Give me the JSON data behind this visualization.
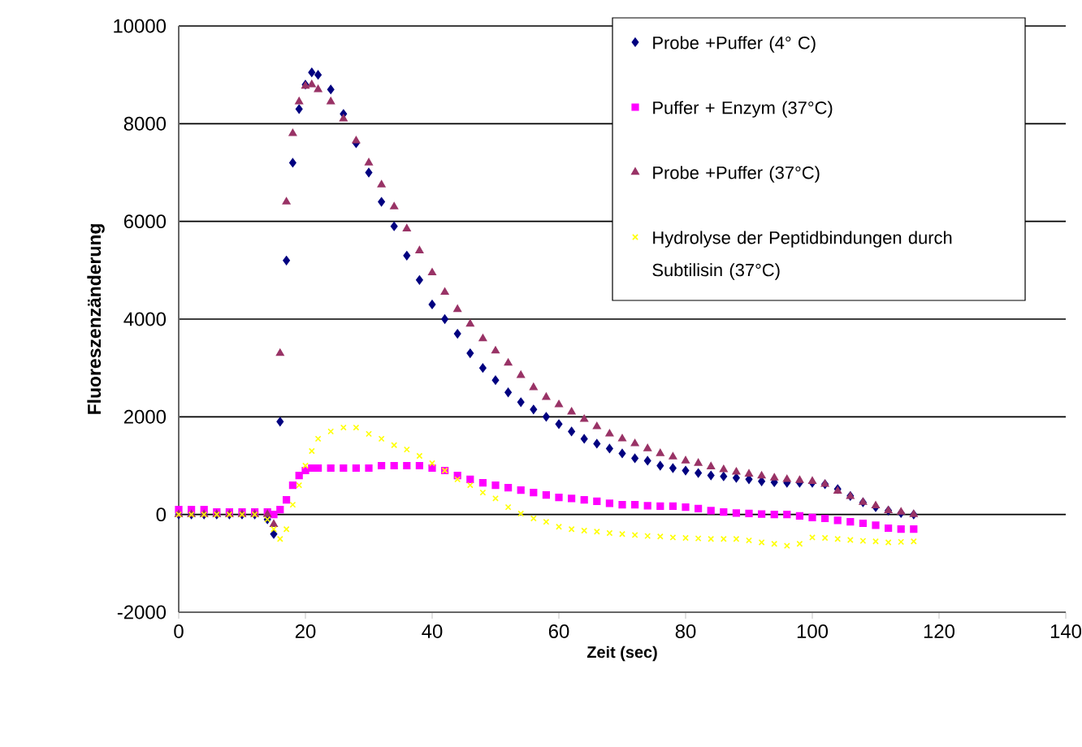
{
  "chart_data": {
    "type": "scatter",
    "xlabel": "Zeit (sec)",
    "ylabel": "Fluoreszenzänderung",
    "x": [
      0,
      2,
      4,
      6,
      8,
      10,
      12,
      14,
      15,
      16,
      17,
      18,
      19,
      20,
      21,
      22,
      24,
      26,
      28,
      30,
      32,
      34,
      36,
      38,
      40,
      42,
      44,
      46,
      48,
      50,
      52,
      54,
      56,
      58,
      60,
      62,
      64,
      66,
      68,
      70,
      72,
      74,
      76,
      78,
      80,
      82,
      84,
      86,
      88,
      90,
      92,
      94,
      96,
      98,
      100,
      102,
      104,
      106,
      108,
      110,
      112,
      114,
      116
    ],
    "series": [
      {
        "name": "Probe +Puffer (4° C)",
        "color": "#000080",
        "marker": "diamond",
        "values": [
          0,
          0,
          0,
          0,
          0,
          0,
          0,
          -100,
          -400,
          1900,
          5200,
          7200,
          8300,
          8800,
          9050,
          9000,
          8700,
          8200,
          7600,
          7000,
          6400,
          5900,
          5300,
          4800,
          4300,
          4000,
          3700,
          3300,
          3000,
          2750,
          2500,
          2300,
          2150,
          2000,
          1850,
          1700,
          1550,
          1450,
          1350,
          1250,
          1150,
          1100,
          1000,
          950,
          900,
          850,
          800,
          780,
          750,
          720,
          680,
          660,
          650,
          650,
          650,
          620,
          520,
          380,
          250,
          150,
          80,
          30,
          0
        ]
      },
      {
        "name": "Puffer + Enzym (37°C)",
        "color": "#ff00ff",
        "marker": "square",
        "values": [
          100,
          100,
          100,
          50,
          50,
          50,
          50,
          50,
          0,
          100,
          300,
          600,
          800,
          900,
          950,
          950,
          950,
          950,
          950,
          950,
          1000,
          1000,
          1000,
          1000,
          950,
          900,
          800,
          720,
          650,
          600,
          550,
          500,
          450,
          400,
          350,
          330,
          300,
          270,
          230,
          200,
          200,
          180,
          170,
          170,
          150,
          120,
          80,
          50,
          30,
          20,
          10,
          0,
          0,
          -30,
          -60,
          -80,
          -120,
          -150,
          -180,
          -220,
          -280,
          -300,
          -300
        ]
      },
      {
        "name": "Probe +Puffer (37°C)",
        "color": "#993366",
        "marker": "triangle",
        "values": [
          0,
          0,
          0,
          0,
          0,
          0,
          0,
          0,
          -200,
          3300,
          6400,
          7800,
          8450,
          8770,
          8800,
          8700,
          8450,
          8100,
          7650,
          7200,
          6750,
          6300,
          5850,
          5400,
          4950,
          4550,
          4200,
          3900,
          3600,
          3350,
          3100,
          2850,
          2600,
          2400,
          2250,
          2100,
          1950,
          1800,
          1650,
          1550,
          1450,
          1350,
          1250,
          1180,
          1100,
          1050,
          980,
          920,
          870,
          830,
          790,
          750,
          720,
          700,
          680,
          620,
          480,
          370,
          250,
          180,
          80,
          50,
          0
        ]
      },
      {
        "name": "Hydrolyse der Peptidbindungen durch Subtilisin (37°C)",
        "color": "#ffff00",
        "marker": "cross",
        "values": [
          0,
          0,
          0,
          0,
          0,
          0,
          0,
          -100,
          -300,
          -500,
          -300,
          200,
          600,
          1000,
          1300,
          1550,
          1700,
          1780,
          1780,
          1650,
          1550,
          1420,
          1330,
          1200,
          1050,
          900,
          720,
          600,
          450,
          330,
          150,
          20,
          -80,
          -150,
          -250,
          -300,
          -330,
          -350,
          -380,
          -400,
          -420,
          -440,
          -450,
          -470,
          -480,
          -490,
          -500,
          -500,
          -500,
          -530,
          -570,
          -600,
          -640,
          -600,
          -470,
          -480,
          -500,
          -520,
          -540,
          -550,
          -570,
          -560,
          -550
        ]
      }
    ],
    "xlim": [
      0,
      140
    ],
    "xticks": [
      0,
      20,
      40,
      60,
      80,
      100,
      120,
      140
    ],
    "ylim": [
      -2000,
      10000
    ],
    "yticks": [
      -2000,
      0,
      2000,
      4000,
      6000,
      8000,
      10000
    ],
    "grid": "y",
    "legend": "top right"
  }
}
